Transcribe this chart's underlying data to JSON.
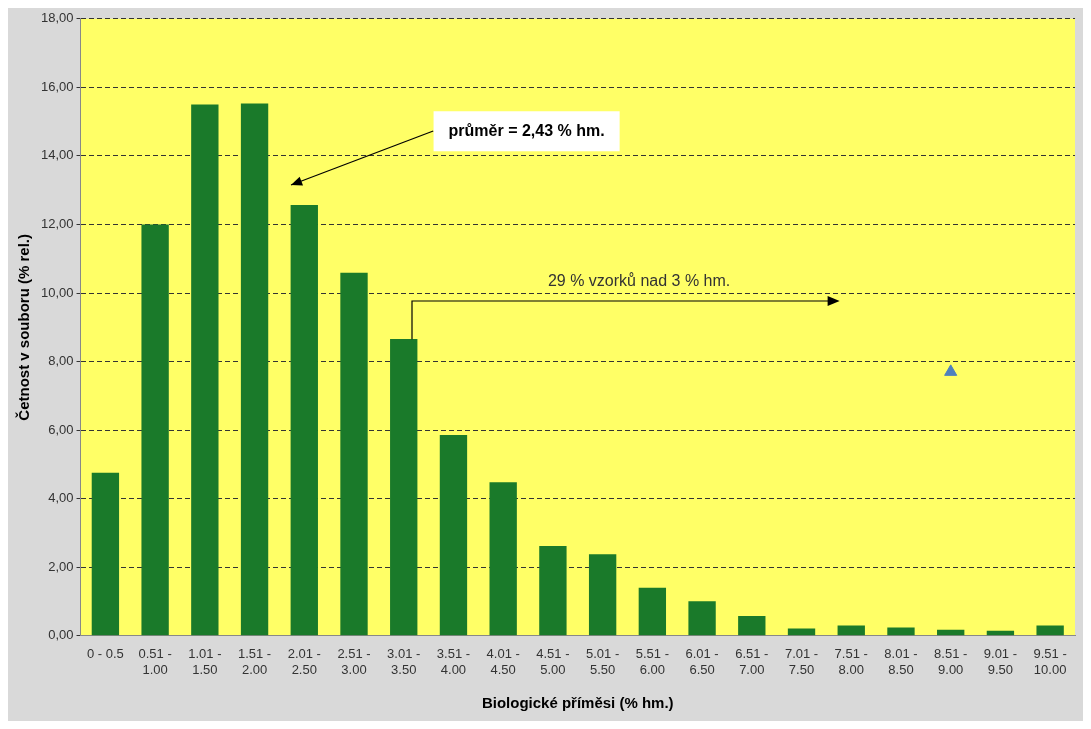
{
  "chart_data": {
    "type": "bar",
    "xlabel": "Biologické příměsi (% hm.)",
    "ylabel": "Četnost v souboru (% rel.)",
    "categories": [
      "0 - 0.5",
      "0.51 -\n1.00",
      "1.01 -\n1.50",
      "1.51 -\n2.00",
      "2.01 -\n2.50",
      "2.51 -\n3.00",
      "3.01 -\n3.50",
      "3.51 -\n4.00",
      "4.01 -\n4.50",
      "4.51 -\n5.00",
      "5.01 -\n5.50",
      "5.51 -\n6.00",
      "6.01 -\n6.50",
      "6.51 -\n7.00",
      "7.01 -\n7.50",
      "7.51 -\n8.00",
      "8.01 -\n8.50",
      "8.51 -\n9.00",
      "9.01 -\n9.50",
      "9.51 -\n10.00"
    ],
    "series": [
      {
        "color": "#1a7a2a",
        "values": [
          4.76,
          12.0,
          15.5,
          15.53,
          12.57,
          10.59,
          8.66,
          5.86,
          4.48,
          2.62,
          2.38,
          1.4,
          1.01,
          0.58,
          0.21,
          0.3,
          0.24,
          0.18,
          0.15,
          0.3
        ]
      },
      {
        "type": "scatter",
        "color": "#4f81bd",
        "marker": "triangle",
        "x": [
          "8.51 -\n9.00"
        ],
        "values": [
          7.7
        ]
      }
    ],
    "ylim": [
      0,
      18
    ],
    "yticks": [
      {
        "value": 0,
        "label": "0,00"
      },
      {
        "value": 2,
        "label": "2,00"
      },
      {
        "value": 4,
        "label": "4,00"
      },
      {
        "value": 6,
        "label": "6,00"
      },
      {
        "value": 8,
        "label": "8,00"
      },
      {
        "value": 10,
        "label": "10,00"
      },
      {
        "value": 12,
        "label": "12,00"
      },
      {
        "value": 14,
        "label": "14,00"
      },
      {
        "value": 16,
        "label": "16,00"
      },
      {
        "value": 18,
        "label": "18,00"
      }
    ],
    "grid": "y",
    "legend": false,
    "annotations": [
      "průměr = 2,43 % hm.",
      "29 % vzorků nad 3 % hm."
    ]
  }
}
